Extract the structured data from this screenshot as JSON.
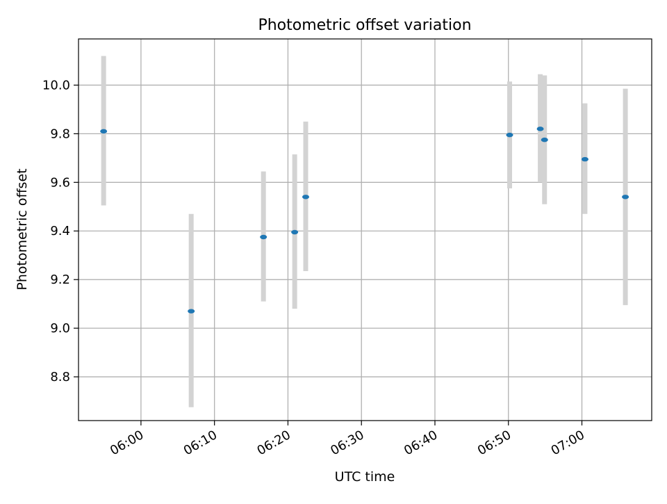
{
  "chart_data": {
    "type": "scatter",
    "title": "Photometric offset variation",
    "xlabel": "UTC time",
    "ylabel": "Photometric offset",
    "x_axis_type": "time",
    "xlim": [
      "05:51:30",
      "07:09:30"
    ],
    "ylim": [
      8.62,
      10.19
    ],
    "x_ticks": [
      "06:00",
      "06:10",
      "06:20",
      "06:30",
      "06:40",
      "06:50",
      "07:00"
    ],
    "y_ticks": [
      8.8,
      9.0,
      9.2,
      9.4,
      9.6,
      9.8,
      10.0
    ],
    "grid": true,
    "legend": "none",
    "points": [
      {
        "x": "05:54:55",
        "y": 9.81,
        "err_low": 9.505,
        "err_high": 10.12
      },
      {
        "x": "06:06:50",
        "y": 9.07,
        "err_low": 8.675,
        "err_high": 9.47
      },
      {
        "x": "06:16:40",
        "y": 9.375,
        "err_low": 9.11,
        "err_high": 9.645
      },
      {
        "x": "06:20:55",
        "y": 9.395,
        "err_low": 9.08,
        "err_high": 9.715
      },
      {
        "x": "06:22:25",
        "y": 9.54,
        "err_low": 9.235,
        "err_high": 9.85
      },
      {
        "x": "06:50:10",
        "y": 9.795,
        "err_low": 9.575,
        "err_high": 10.015
      },
      {
        "x": "06:54:20",
        "y": 9.82,
        "err_low": 9.6,
        "err_high": 10.045
      },
      {
        "x": "06:54:55",
        "y": 9.775,
        "err_low": 9.51,
        "err_high": 10.04
      },
      {
        "x": "07:00:25",
        "y": 9.695,
        "err_low": 9.47,
        "err_high": 9.925
      },
      {
        "x": "07:05:55",
        "y": 9.54,
        "err_low": 9.095,
        "err_high": 9.985
      }
    ],
    "colors": {
      "point": "#1f77b4",
      "errorbar": "#d3d3d3",
      "grid": "#b0b0b0",
      "axes": "#000000"
    }
  }
}
